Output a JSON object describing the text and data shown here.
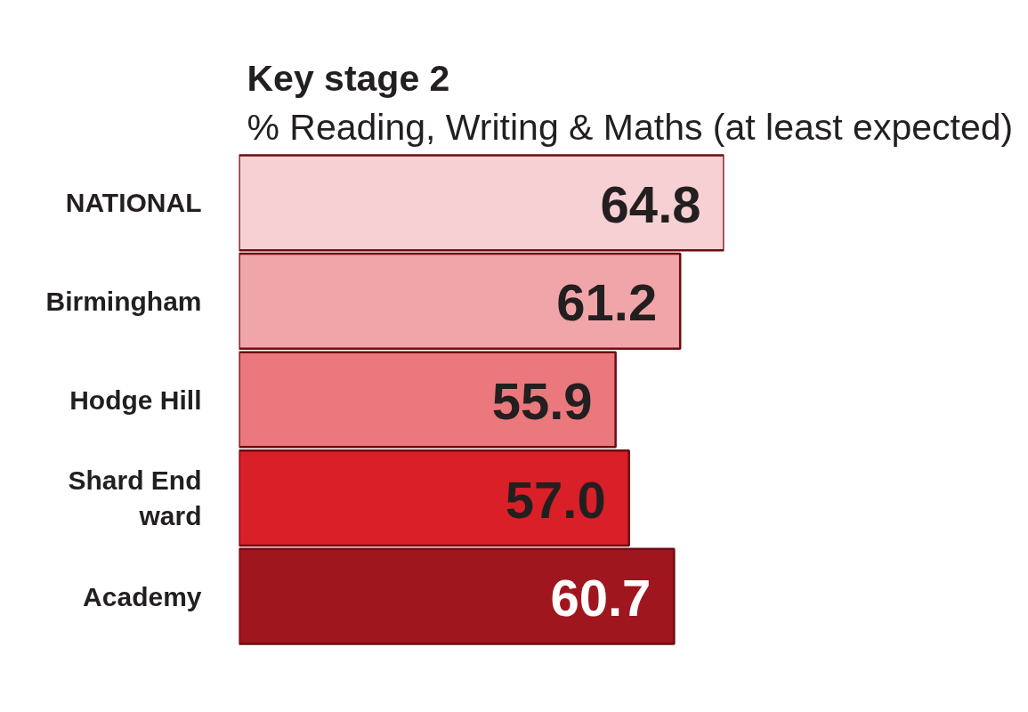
{
  "chart_data": {
    "type": "bar",
    "orientation": "horizontal",
    "title": "Key stage 2",
    "subtitle": "% Reading, Writing & Maths (at least expected)",
    "categories": [
      "NATIONAL",
      "Birmingham",
      "Hodge Hill",
      "Shard End ward",
      "Academy"
    ],
    "values": [
      64.8,
      61.2,
      55.9,
      57.0,
      60.7
    ],
    "value_labels": [
      "64.8",
      "61.2",
      "55.9",
      "57.0",
      "60.7"
    ],
    "colors": [
      "#f7d0d3",
      "#f0a5a9",
      "#eb787c",
      "#d91f27",
      "#a0161e"
    ],
    "xlim": [
      25,
      64.8
    ],
    "tick_labels": "y"
  }
}
